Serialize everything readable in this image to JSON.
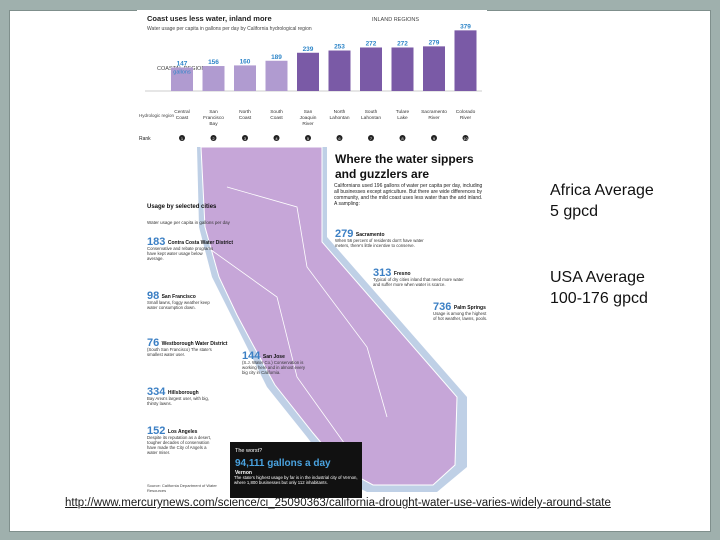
{
  "infographic": {
    "chart": {
      "title": "Coast uses less water, inland more",
      "subtitle": "Water usage per capita in gallons per day by California hydrological region",
      "inland_label": "INLAND REGIONS",
      "coastal_label": "COASTAL REGIONS",
      "row_label_region": "Hydrologic region",
      "row_label_rank": "Rank",
      "unit_label": "gallons",
      "regions": [
        {
          "name": "Central Coast",
          "value": 147,
          "rank": 1
        },
        {
          "name": "San Francisco Bay",
          "value": 156,
          "rank": 2
        },
        {
          "name": "North Coast",
          "value": 160,
          "rank": 3
        },
        {
          "name": "South Coast",
          "value": 189,
          "rank": 4
        },
        {
          "name": "San Joaquin River",
          "value": 239,
          "rank": 5
        },
        {
          "name": "North Lahontan",
          "value": 253,
          "rank": 6
        },
        {
          "name": "South Lahontan",
          "value": 272,
          "rank": 7
        },
        {
          "name": "Tulare Lake",
          "value": 272,
          "rank": 8
        },
        {
          "name": "Sacramento River",
          "value": 279,
          "rank": 9
        },
        {
          "name": "Colorado River",
          "value": 379,
          "rank": 10
        }
      ]
    },
    "map": {
      "title_line1": "Where the water sippers",
      "title_line2": "and guzzlers are",
      "intro": "Californians used 196 gallons of water per capita per day, including all businesses except agriculture. But there are wide differences by community, and the mild coast uses less water than the arid inland. A sampling:",
      "legend_title": "Usage by selected cities",
      "legend_sub": "Water usage per capita in gallons per day",
      "cities": [
        {
          "value": "183",
          "name": "Contra Costa Water District",
          "note": "Conservative and rebate programs have kept water usage below average."
        },
        {
          "value": "98",
          "name": "San Francisco",
          "note": "Small lawns, foggy weather keep water consumption down."
        },
        {
          "value": "76",
          "name": "Westborough Water District",
          "note": "(South San Francisco) The state's smallest water user."
        },
        {
          "value": "334",
          "name": "Hillsborough",
          "note": "Bay Area's largest user, with big, thirsty lawns."
        },
        {
          "value": "152",
          "name": "Los Angeles",
          "note": "Despite its reputation as a desert, tougher decades of conservation have made the City of Angels a water miser."
        },
        {
          "value": "144",
          "name": "San Jose",
          "note": "(S.J. Water Co.) Conservation is working here and in almost every big city in California."
        },
        {
          "value": "279",
          "name": "Sacramento",
          "note": "When 56 percent of residents don't have water meters, there's little incentive to conserve."
        },
        {
          "value": "313",
          "name": "Fresno",
          "note": "Typical of dry cities inland that need more water and suffer more when water is scarce."
        },
        {
          "value": "736",
          "name": "Palm Springs",
          "note": "Usage is among the highest in the state because of hot weather, lawns, pools."
        }
      ],
      "worst_label": "The worst?",
      "worst_value": "94,111 gallons a day",
      "worst_place": "Vernon",
      "worst_note": "The state's highest usage by far is in the industrial city of Vernon, where 1,800 businesses but only 112 inhabitants.",
      "source": "Source: California Department of Water Resources"
    }
  },
  "side": {
    "africa_line1": "Africa Average",
    "africa_line2": "5 gpcd",
    "usa_line1": "USA Average",
    "usa_line2": "100-176 gpcd"
  },
  "link": {
    "url": "http://www.mercurynews.com/science/ci_25090363/california-drought-water-use-varies-widely-around-state"
  },
  "colors": {
    "bar": "#7a5aa6",
    "bar_light": "#b09bd0",
    "value_text": "#2f86c8",
    "map_state": "#c6a6d8",
    "map_water": "#bfd0e6",
    "accent_blue": "#3b7fc4",
    "frame": "#9fb0ad"
  }
}
